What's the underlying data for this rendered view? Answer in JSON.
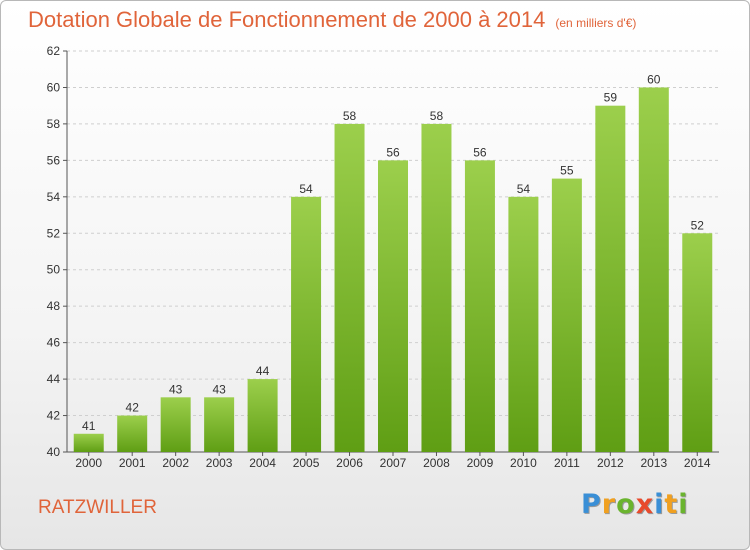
{
  "header": {
    "title": "Dotation Globale de Fonctionnement de 2000 à 2014",
    "unit": "(en milliers d'€)"
  },
  "footer": {
    "commune": "RATZWILLER",
    "logo_letters": [
      "P",
      "r",
      "o",
      "x",
      "i",
      "t",
      "i"
    ],
    "logo_colors": [
      "#3a8fd6",
      "#f0a020",
      "#6ab42e",
      "#e84a2c",
      "#3a8fd6",
      "#f0a020",
      "#6ab42e"
    ]
  },
  "chart_data": {
    "type": "bar",
    "categories": [
      "2000",
      "2001",
      "2002",
      "2003",
      "2004",
      "2005",
      "2006",
      "2007",
      "2008",
      "2009",
      "2010",
      "2011",
      "2012",
      "2013",
      "2014"
    ],
    "values": [
      41,
      42,
      43,
      43,
      44,
      54,
      58,
      56,
      58,
      56,
      54,
      55,
      59,
      60,
      52
    ],
    "ylim": [
      40,
      62
    ],
    "yticks": [
      40,
      42,
      44,
      46,
      48,
      50,
      52,
      54,
      56,
      58,
      60,
      62
    ],
    "grid": true,
    "bar_color_top": "#9ccf4c",
    "bar_color_bottom": "#5f9e14"
  }
}
